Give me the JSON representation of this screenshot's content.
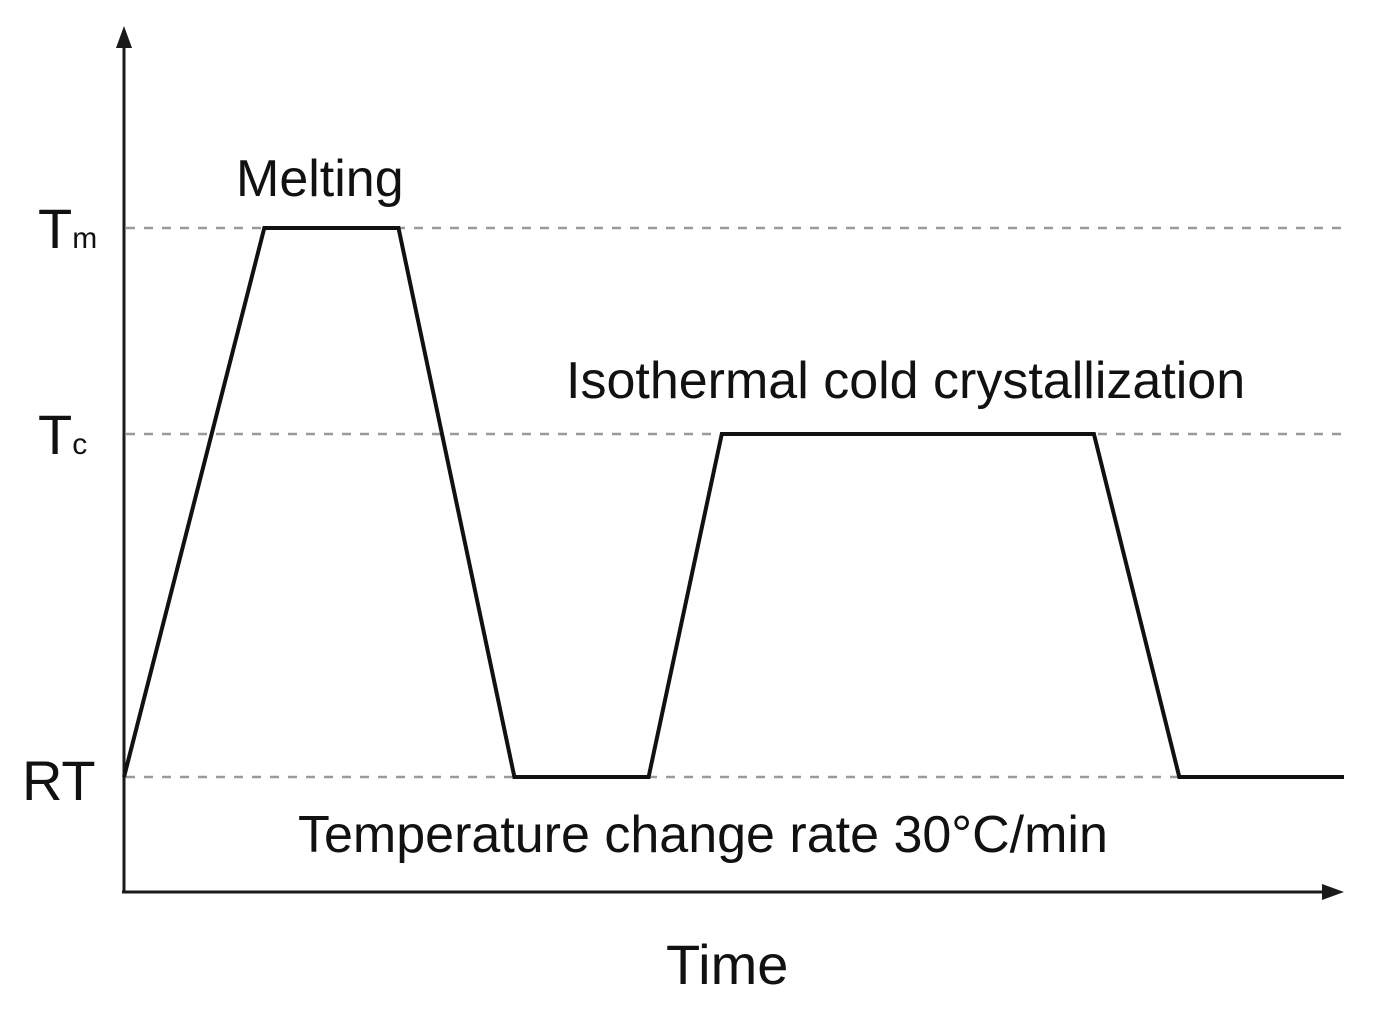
{
  "diagram": {
    "x_axis_label": "Time",
    "y_levels": {
      "tm": {
        "main": "T",
        "sub": "m"
      },
      "tc": {
        "main": "T",
        "sub": "c"
      },
      "rt": {
        "main": "RT"
      }
    },
    "annotations": {
      "melting": "Melting",
      "isothermal": "Isothermal cold crystallization",
      "rate": "Temperature change rate 30°C/min"
    },
    "profile": [
      {
        "time": 0,
        "level": "RT"
      },
      {
        "time": 1.15,
        "level": "Tm"
      },
      {
        "time": 2.25,
        "level": "Tm"
      },
      {
        "time": 3.2,
        "level": "RT"
      },
      {
        "time": 4.3,
        "level": "RT"
      },
      {
        "time": 4.9,
        "level": "Tc"
      },
      {
        "time": 7.95,
        "level": "Tc"
      },
      {
        "time": 8.65,
        "level": "RT"
      },
      {
        "time": 10,
        "level": "RT"
      }
    ],
    "colors": {
      "line": "#111111",
      "guides": "#9a9a9a",
      "background": "#ffffff"
    }
  }
}
